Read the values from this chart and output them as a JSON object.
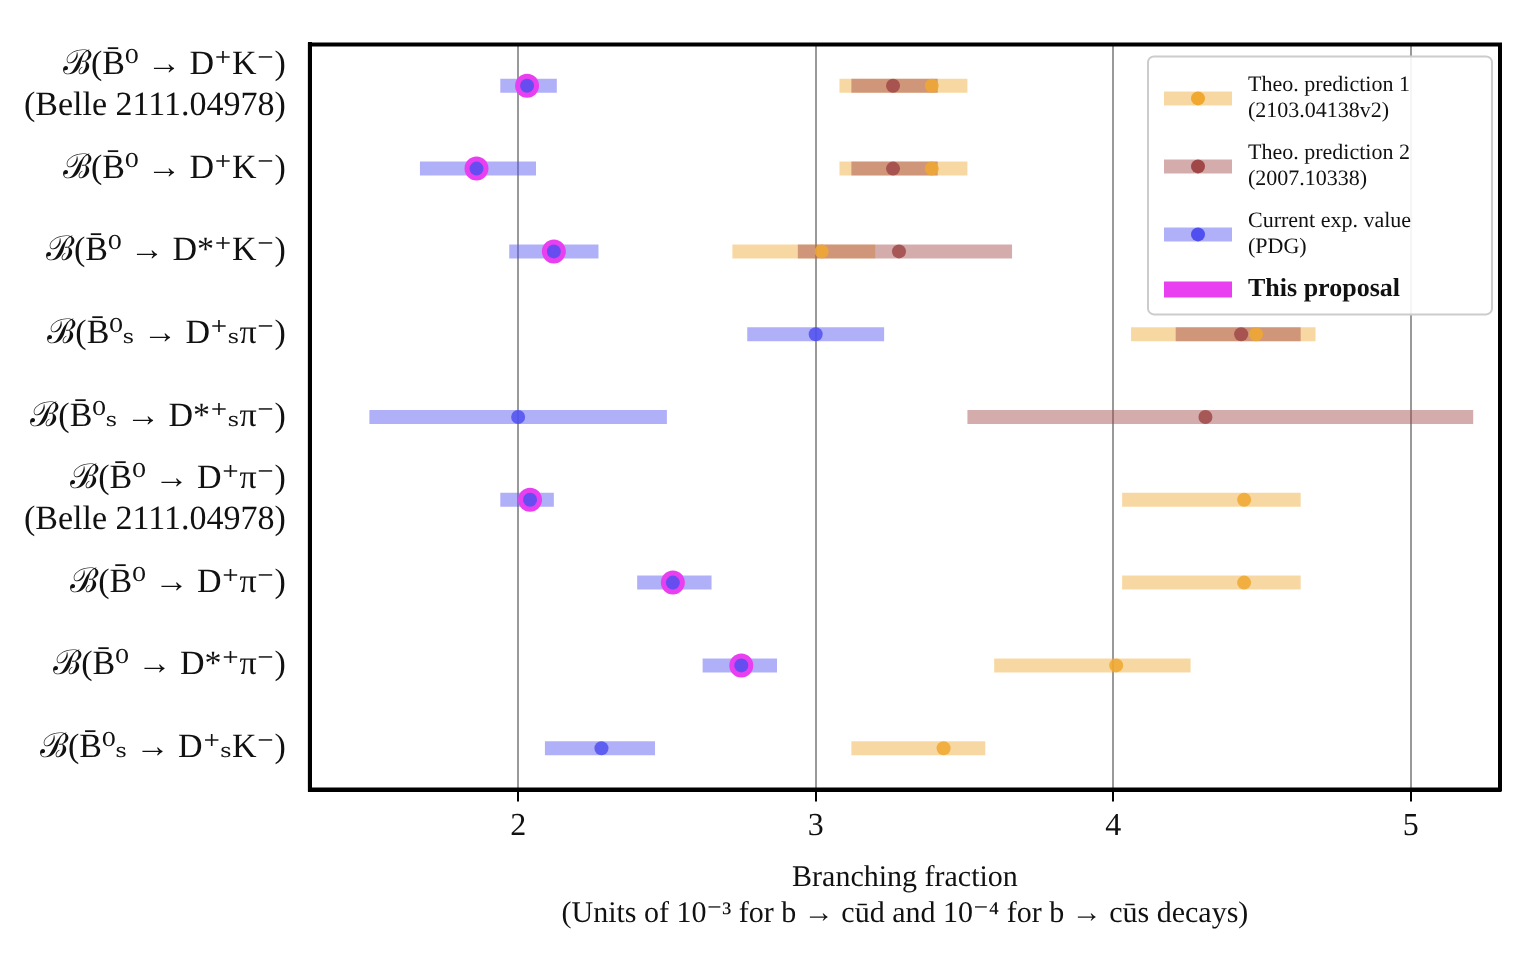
{
  "chart_data": {
    "type": "scatter",
    "orientation": "horizontal",
    "xlabel": "Branching fraction\n(Units of 10⁻³ for b → cūd and 10⁻⁴ for b → cūs decays)",
    "categories": [
      "ℬ(B̄⁰ → D⁺K⁻)\n(Belle 2111.04978)",
      "ℬ(B̄⁰ → D⁺K⁻)",
      "ℬ(B̄⁰ → D*⁺K⁻)",
      "ℬ(B̄⁰ₛ → D⁺ₛπ⁻)",
      "ℬ(B̄⁰ₛ → D*⁺ₛπ⁻)",
      "ℬ(B̄⁰ → D⁺π⁻)\n(Belle 2111.04978)",
      "ℬ(B̄⁰ → D⁺π⁻)",
      "ℬ(B̄⁰ → D*⁺π⁻)",
      "ℬ(B̄⁰ₛ → D⁺ₛK⁻)"
    ],
    "series": [
      {
        "name": "Theo. prediction 1\n(2103.04138v2)",
        "color": "#f0a830",
        "values": [
          3.39,
          3.39,
          3.02,
          4.48,
          null,
          4.44,
          4.44,
          4.01,
          3.43
        ],
        "errors": [
          [
            3.08,
            3.51
          ],
          [
            3.08,
            3.51
          ],
          [
            2.72,
            3.2
          ],
          [
            4.06,
            4.68
          ],
          null,
          [
            4.03,
            4.63
          ],
          [
            4.03,
            4.63
          ],
          [
            3.6,
            4.26
          ],
          [
            3.12,
            3.57
          ]
        ]
      },
      {
        "name": "Theo. prediction 2\n(2007.10338)",
        "color": "#a04848",
        "values": [
          3.26,
          3.26,
          3.28,
          4.43,
          4.31,
          null,
          null,
          null,
          null
        ],
        "errors": [
          [
            3.12,
            3.41
          ],
          [
            3.12,
            3.41
          ],
          [
            2.94,
            3.66
          ],
          [
            4.21,
            4.63
          ],
          [
            3.51,
            5.21
          ],
          null,
          null,
          null,
          null
        ]
      },
      {
        "name": "Current exp. value\n(PDG)",
        "color": "#5050f0",
        "values": [
          2.03,
          1.86,
          2.12,
          3.0,
          2.0,
          2.04,
          2.52,
          2.75,
          2.28
        ],
        "errors": [
          [
            1.94,
            2.13
          ],
          [
            1.67,
            2.06
          ],
          [
            1.97,
            2.27
          ],
          [
            2.77,
            3.23
          ],
          [
            1.5,
            2.5
          ],
          [
            1.94,
            2.12
          ],
          [
            2.4,
            2.65
          ],
          [
            2.62,
            2.87
          ],
          [
            2.09,
            2.46
          ]
        ]
      },
      {
        "name": "This proposal",
        "color": "#e840f0",
        "values": [
          2.03,
          1.86,
          2.12,
          null,
          null,
          2.04,
          2.52,
          2.75,
          null
        ]
      }
    ],
    "xlim": [
      1.3,
      5.3
    ],
    "xticks": [
      2,
      3,
      4,
      5
    ],
    "grid": "x",
    "legend": "top right",
    "marker": "circle"
  }
}
